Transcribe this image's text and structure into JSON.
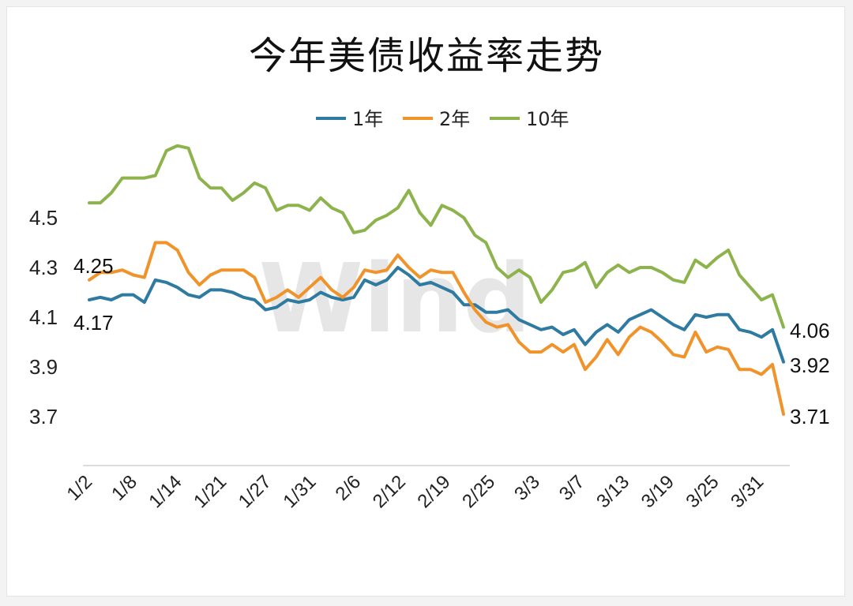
{
  "chart_data": {
    "type": "line",
    "title": "今年美债收益率走势",
    "legend_position": "top",
    "grid": false,
    "ylim": [
      3.5,
      4.9
    ],
    "yticks": [
      "4.5",
      "4.3",
      "4.1",
      "3.9",
      "3.7"
    ],
    "xticks": [
      "1/2",
      "1/8",
      "1/14",
      "1/21",
      "1/27",
      "1/31",
      "2/6",
      "2/12",
      "2/19",
      "2/25",
      "3/3",
      "3/7",
      "3/13",
      "3/19",
      "3/25",
      "3/31"
    ],
    "watermark": "Wind",
    "series": [
      {
        "name": "1年",
        "color": "#2e7aa0",
        "values": [
          4.17,
          4.18,
          4.17,
          4.19,
          4.19,
          4.16,
          4.25,
          4.24,
          4.22,
          4.19,
          4.18,
          4.21,
          4.21,
          4.2,
          4.18,
          4.17,
          4.13,
          4.14,
          4.17,
          4.16,
          4.17,
          4.2,
          4.18,
          4.17,
          4.18,
          4.25,
          4.23,
          4.25,
          4.3,
          4.27,
          4.23,
          4.24,
          4.22,
          4.2,
          4.15,
          4.15,
          4.12,
          4.12,
          4.13,
          4.09,
          4.07,
          4.05,
          4.06,
          4.03,
          4.05,
          3.99,
          4.04,
          4.07,
          4.04,
          4.09,
          4.11,
          4.13,
          4.1,
          4.07,
          4.05,
          4.11,
          4.1,
          4.11,
          4.11,
          4.05,
          4.04,
          4.02,
          4.05,
          3.92
        ]
      },
      {
        "name": "2年",
        "color": "#f0932b",
        "values": [
          4.25,
          4.28,
          4.28,
          4.29,
          4.27,
          4.26,
          4.4,
          4.4,
          4.37,
          4.28,
          4.23,
          4.27,
          4.29,
          4.29,
          4.29,
          4.26,
          4.16,
          4.18,
          4.21,
          4.18,
          4.22,
          4.26,
          4.21,
          4.18,
          4.22,
          4.29,
          4.28,
          4.29,
          4.35,
          4.3,
          4.26,
          4.29,
          4.28,
          4.28,
          4.2,
          4.13,
          4.08,
          4.06,
          4.07,
          4.0,
          3.96,
          3.96,
          3.99,
          3.96,
          3.99,
          3.89,
          3.94,
          4.01,
          3.95,
          4.02,
          4.06,
          4.04,
          4.0,
          3.95,
          3.94,
          4.04,
          3.96,
          3.98,
          3.97,
          3.89,
          3.89,
          3.87,
          3.91,
          3.71
        ]
      },
      {
        "name": "10年",
        "color": "#8db34d",
        "values": [
          4.56,
          4.56,
          4.6,
          4.66,
          4.66,
          4.66,
          4.67,
          4.77,
          4.79,
          4.78,
          4.66,
          4.62,
          4.62,
          4.57,
          4.6,
          4.64,
          4.62,
          4.53,
          4.55,
          4.55,
          4.53,
          4.58,
          4.54,
          4.52,
          4.44,
          4.45,
          4.49,
          4.51,
          4.54,
          4.61,
          4.52,
          4.47,
          4.55,
          4.53,
          4.5,
          4.43,
          4.4,
          4.3,
          4.26,
          4.29,
          4.26,
          4.16,
          4.21,
          4.28,
          4.29,
          4.32,
          4.22,
          4.28,
          4.31,
          4.28,
          4.3,
          4.3,
          4.28,
          4.25,
          4.24,
          4.33,
          4.3,
          4.34,
          4.37,
          4.27,
          4.22,
          4.17,
          4.19,
          4.06
        ]
      }
    ],
    "annotations": [
      {
        "text": "4.25",
        "series": 1,
        "index": 0
      },
      {
        "text": "4.17",
        "series": 0,
        "index": 0
      },
      {
        "text": "4.06",
        "series": 2,
        "index": 63
      },
      {
        "text": "3.92",
        "series": 0,
        "index": 63
      },
      {
        "text": "3.71",
        "series": 1,
        "index": 63
      }
    ]
  }
}
